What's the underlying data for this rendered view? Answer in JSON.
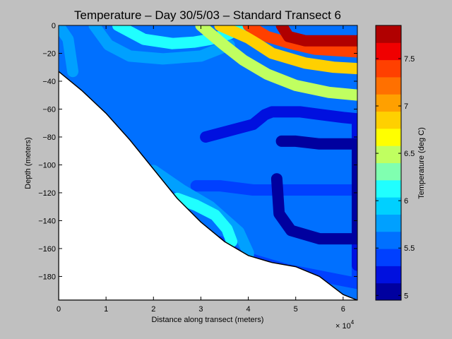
{
  "chart_data": {
    "type": "heatmap",
    "title": "Temperature – Day 30/5/03 – Standard Transect 6",
    "xlabel": "Distance along transect (meters)",
    "ylabel": "Depth (meters)",
    "x_multiplier_label": "× 10",
    "x_multiplier_exponent": "4",
    "xlim": [
      0,
      63000
    ],
    "ylim": [
      -197,
      0
    ],
    "x_ticks": [
      0,
      10000,
      20000,
      30000,
      40000,
      50000,
      60000
    ],
    "x_tick_labels": [
      "0",
      "1",
      "2",
      "3",
      "4",
      "5",
      "6"
    ],
    "y_ticks": [
      0,
      -20,
      -40,
      -60,
      -80,
      -100,
      -120,
      -140,
      -160,
      -180
    ],
    "y_tick_labels": [
      "0",
      "−20",
      "−40",
      "−60",
      "−80",
      "−100",
      "−120",
      "−140",
      "−160",
      "−180"
    ],
    "colorbar": {
      "label": "Temperature (deg C)",
      "range": [
        4.95,
        7.85
      ],
      "ticks": [
        5,
        5.5,
        6,
        6.5,
        7,
        7.5
      ],
      "tick_labels": [
        "5",
        "5.5",
        "6",
        "6.5",
        "7",
        "7.5"
      ],
      "colors": [
        "#00009f",
        "#0010df",
        "#0040ff",
        "#0070ff",
        "#00a0ff",
        "#00d0ff",
        "#20ffff",
        "#80ffb0",
        "#c0ff60",
        "#ffff00",
        "#ffd000",
        "#ffa000",
        "#ff7000",
        "#ff4000",
        "#f00000",
        "#b00000"
      ]
    },
    "seafloor": {
      "x": [
        0,
        5000,
        10000,
        15000,
        20000,
        25000,
        30000,
        35000,
        40000,
        45000,
        50000,
        55000,
        60000,
        63000
      ],
      "depth": [
        -33,
        -47,
        -63,
        -82,
        -103,
        -124,
        -141,
        -155,
        -165,
        -170,
        -173,
        -180,
        -193,
        -197
      ]
    },
    "fields": [
      {
        "level": 5.4,
        "x": [
          29000,
          34000,
          41000,
          63000,
          63000,
          48000,
          38000,
          34000
        ],
        "depth": [
          -115,
          -115,
          -118,
          -118,
          -185,
          -175,
          -165,
          -155
        ]
      },
      {
        "level": 5.25,
        "x": [
          31000,
          41000,
          43500,
          45000,
          48000,
          51000,
          55500,
          60000,
          63000,
          63000
        ],
        "depth": [
          -80,
          -71,
          -64,
          -62,
          -62,
          -62,
          -64,
          -66,
          -67,
          -172
        ]
      },
      {
        "level": 5.05,
        "x": [
          47000,
          50000,
          55000,
          63000,
          63000,
          55000,
          49000,
          46500,
          46000
        ],
        "depth": [
          -83,
          -83,
          -85,
          -85,
          -153,
          -153,
          -147,
          -135,
          -110
        ]
      },
      {
        "level": 5.75,
        "x": [
          7500,
          10500,
          15000,
          22000,
          30000,
          33000,
          36000
        ],
        "depth": [
          0,
          -14,
          -22,
          -24,
          -22,
          -18,
          -14
        ]
      },
      {
        "level": 5.75,
        "x": [
          0,
          1000,
          2000,
          3000
        ],
        "depth": [
          0,
          -5,
          -10,
          -33
        ]
      },
      {
        "level": 5.75,
        "x": [
          20000,
          26000,
          32000,
          38000,
          40000,
          40000
        ],
        "depth": [
          -104,
          -118,
          -130,
          -148,
          -163,
          -165
        ]
      },
      {
        "level": 6.05,
        "x": [
          12500,
          18000,
          24000,
          28500,
          32000,
          36000,
          39000
        ],
        "depth": [
          0,
          -10,
          -13,
          -12,
          -10,
          -6,
          0
        ]
      },
      {
        "level": 6.05,
        "x": [
          25000,
          29000,
          33000,
          35500,
          36500
        ],
        "depth": [
          -124,
          -129,
          -136,
          -146,
          -155
        ]
      },
      {
        "level": 6.45,
        "x": [
          30000,
          34500,
          39000,
          44000,
          50000,
          57000,
          63000
        ],
        "depth": [
          0,
          -13,
          -25,
          -35,
          -43,
          -48,
          -50
        ]
      },
      {
        "level": 6.9,
        "x": [
          34000,
          40000,
          45000,
          52000,
          58000,
          63000
        ],
        "depth": [
          0,
          -9,
          -20,
          -27,
          -30,
          -31
        ]
      },
      {
        "level": 7.4,
        "x": [
          40000,
          44000,
          49000,
          54000,
          63000
        ],
        "depth": [
          0,
          -8,
          -13,
          -17,
          -19
        ]
      },
      {
        "level": 7.8,
        "x": [
          47000,
          48500,
          52000,
          63000
        ],
        "depth": [
          0,
          -8,
          -11,
          -11
        ]
      }
    ]
  }
}
